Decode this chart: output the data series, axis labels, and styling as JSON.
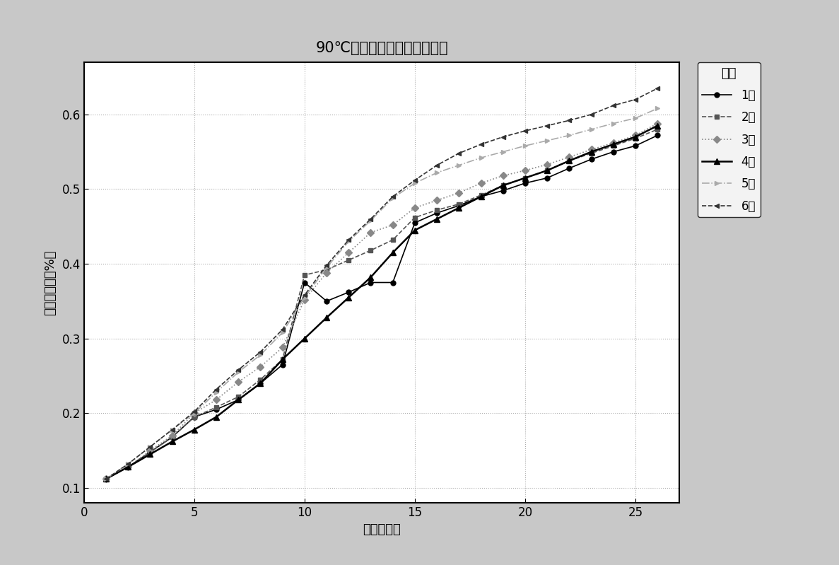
{
  "title": "90℃压缩变形率与时间的关系",
  "xlabel": "时间（天）",
  "ylabel": "压缩变形率（%）",
  "xlim": [
    0,
    27
  ],
  "ylim": [
    0.08,
    0.67
  ],
  "xticks": [
    0,
    5,
    10,
    15,
    20,
    25
  ],
  "yticks": [
    0.1,
    0.2,
    0.3,
    0.4,
    0.5,
    0.6
  ],
  "series": [
    {
      "label": "1号",
      "color": "#000000",
      "linestyle": "-",
      "marker": "o",
      "markersize": 5,
      "linewidth": 1.2,
      "x": [
        1,
        2,
        3,
        4,
        5,
        6,
        7,
        8,
        9,
        10,
        11,
        12,
        13,
        14,
        15,
        16,
        17,
        18,
        19,
        20,
        21,
        22,
        23,
        24,
        25,
        26
      ],
      "y": [
        0.112,
        0.128,
        0.148,
        0.168,
        0.195,
        0.205,
        0.218,
        0.24,
        0.265,
        0.375,
        0.35,
        0.362,
        0.375,
        0.375,
        0.455,
        0.468,
        0.478,
        0.49,
        0.498,
        0.508,
        0.515,
        0.528,
        0.54,
        0.55,
        0.558,
        0.572
      ]
    },
    {
      "label": "2号",
      "color": "#555555",
      "linestyle": "--",
      "marker": "s",
      "markersize": 5,
      "linewidth": 1.2,
      "x": [
        1,
        2,
        3,
        4,
        5,
        6,
        7,
        8,
        9,
        10,
        11,
        12,
        13,
        14,
        15,
        16,
        17,
        18,
        19,
        20,
        21,
        22,
        23,
        24,
        25,
        26
      ],
      "y": [
        0.112,
        0.128,
        0.148,
        0.168,
        0.195,
        0.208,
        0.222,
        0.245,
        0.272,
        0.385,
        0.392,
        0.405,
        0.418,
        0.432,
        0.462,
        0.472,
        0.48,
        0.492,
        0.505,
        0.515,
        0.525,
        0.538,
        0.548,
        0.558,
        0.568,
        0.58
      ]
    },
    {
      "label": "3号",
      "color": "#888888",
      "linestyle": ":",
      "marker": "D",
      "markersize": 5,
      "linewidth": 1.2,
      "x": [
        1,
        2,
        3,
        4,
        5,
        6,
        7,
        8,
        9,
        10,
        11,
        12,
        13,
        14,
        15,
        16,
        17,
        18,
        19,
        20,
        21,
        22,
        23,
        24,
        25,
        26
      ],
      "y": [
        0.112,
        0.128,
        0.15,
        0.17,
        0.2,
        0.218,
        0.242,
        0.262,
        0.288,
        0.352,
        0.388,
        0.415,
        0.442,
        0.452,
        0.475,
        0.485,
        0.495,
        0.508,
        0.518,
        0.525,
        0.533,
        0.543,
        0.553,
        0.562,
        0.572,
        0.588
      ]
    },
    {
      "label": "4号",
      "color": "#000000",
      "linestyle": "-",
      "marker": "^",
      "markersize": 6,
      "linewidth": 1.8,
      "x": [
        1,
        2,
        3,
        4,
        5,
        6,
        7,
        8,
        9,
        10,
        11,
        12,
        13,
        14,
        15,
        16,
        17,
        18,
        19,
        20,
        21,
        22,
        23,
        24,
        25,
        26
      ],
      "y": [
        0.112,
        0.128,
        0.145,
        0.162,
        0.178,
        0.195,
        0.218,
        0.24,
        0.272,
        0.3,
        0.328,
        0.355,
        0.382,
        0.415,
        0.445,
        0.46,
        0.475,
        0.49,
        0.505,
        0.515,
        0.525,
        0.538,
        0.55,
        0.56,
        0.57,
        0.585
      ]
    },
    {
      "label": "5号",
      "color": "#aaaaaa",
      "linestyle": "-.",
      "marker": ">",
      "markersize": 5,
      "linewidth": 1.2,
      "x": [
        1,
        2,
        3,
        4,
        5,
        6,
        7,
        8,
        9,
        10,
        11,
        12,
        13,
        14,
        15,
        16,
        17,
        18,
        19,
        20,
        21,
        22,
        23,
        24,
        25,
        26
      ],
      "y": [
        0.112,
        0.132,
        0.155,
        0.178,
        0.2,
        0.228,
        0.255,
        0.278,
        0.308,
        0.355,
        0.395,
        0.43,
        0.458,
        0.488,
        0.508,
        0.522,
        0.532,
        0.542,
        0.55,
        0.558,
        0.565,
        0.572,
        0.58,
        0.588,
        0.595,
        0.608
      ]
    },
    {
      "label": "6号",
      "color": "#333333",
      "linestyle": "--",
      "marker": "<",
      "markersize": 5,
      "linewidth": 1.2,
      "x": [
        1,
        2,
        3,
        4,
        5,
        6,
        7,
        8,
        9,
        10,
        11,
        12,
        13,
        14,
        15,
        16,
        17,
        18,
        19,
        20,
        21,
        22,
        23,
        24,
        25,
        26
      ],
      "y": [
        0.112,
        0.132,
        0.155,
        0.178,
        0.202,
        0.232,
        0.258,
        0.282,
        0.312,
        0.358,
        0.398,
        0.432,
        0.46,
        0.49,
        0.512,
        0.532,
        0.548,
        0.56,
        0.57,
        0.578,
        0.585,
        0.592,
        0.6,
        0.612,
        0.62,
        0.635
      ]
    }
  ],
  "legend_title": "变量",
  "background_color": "#c8c8c8",
  "plot_bg_color": "#ffffff",
  "grid_color": "#999999",
  "title_fontsize": 15,
  "label_fontsize": 13,
  "tick_fontsize": 12,
  "legend_fontsize": 12
}
